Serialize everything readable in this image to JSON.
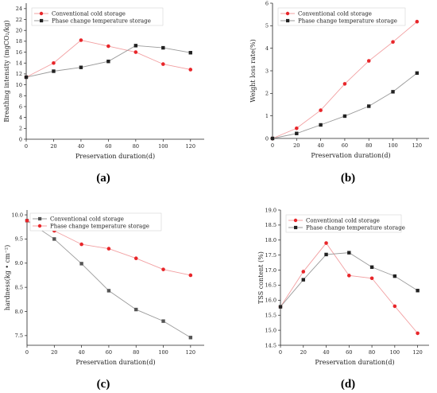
{
  "chart_data": [
    {
      "type": "line",
      "caption": "(a)",
      "xlabel": "Preservation duration(d)",
      "ylabel": "Breathing intensity (mgCO₂/kg)",
      "xlim": [
        0,
        130
      ],
      "ylim": [
        0,
        25
      ],
      "xticks": [
        0,
        20,
        40,
        60,
        80,
        100,
        120
      ],
      "yticks": [
        0,
        2,
        4,
        6,
        8,
        10,
        12,
        14,
        16,
        18,
        20,
        22,
        24
      ],
      "legend_position": "top-left",
      "series": [
        {
          "name": "Conventional cold storage",
          "color": "#e8262a",
          "marker": "circle",
          "x": [
            0,
            20,
            40,
            60,
            80,
            100,
            120
          ],
          "y": [
            11.4,
            14.0,
            18.2,
            17.1,
            16.0,
            13.8,
            12.8
          ]
        },
        {
          "name": "Phase change temperature storage",
          "color": "#222222",
          "marker": "square",
          "x": [
            0,
            20,
            40,
            60,
            80,
            100,
            120
          ],
          "y": [
            11.4,
            12.5,
            13.2,
            14.3,
            17.2,
            16.8,
            15.9
          ]
        }
      ]
    },
    {
      "type": "line",
      "caption": "(b)",
      "xlabel": "Preservation duration(d)",
      "ylabel": "Weight loss rate(%)",
      "xlim": [
        0,
        130
      ],
      "ylim": [
        0,
        6
      ],
      "xticks": [
        0,
        20,
        40,
        60,
        80,
        100,
        120
      ],
      "yticks": [
        0,
        1,
        2,
        3,
        4,
        5,
        6
      ],
      "legend_position": "top-left",
      "series": [
        {
          "name": "Conventional cold storage",
          "color": "#e8262a",
          "marker": "circle",
          "x": [
            0,
            20,
            40,
            60,
            80,
            100,
            120
          ],
          "y": [
            0,
            0.45,
            1.25,
            2.42,
            3.44,
            4.28,
            5.18
          ]
        },
        {
          "name": "Phase change temperature storage",
          "color": "#222222",
          "marker": "square",
          "x": [
            0,
            20,
            40,
            60,
            80,
            100,
            120
          ],
          "y": [
            0,
            0.22,
            0.6,
            0.99,
            1.43,
            2.07,
            2.9
          ]
        }
      ]
    },
    {
      "type": "line",
      "caption": "(c)",
      "xlabel": "Preservation duration(d)",
      "ylabel": "hardness(kg • cm⁻²)",
      "xlim": [
        0,
        130
      ],
      "ylim": [
        7.3,
        10.1
      ],
      "xticks": [
        0,
        20,
        40,
        60,
        80,
        100,
        120
      ],
      "yticks": [
        7.5,
        8.0,
        8.5,
        9.0,
        9.5,
        10.0
      ],
      "legend_position": "top-right",
      "series": [
        {
          "name": "Conventional cold storage",
          "color": "#555555",
          "marker": "square",
          "x": [
            0,
            20,
            40,
            60,
            80,
            100,
            120
          ],
          "y": [
            9.88,
            9.5,
            8.99,
            8.43,
            8.04,
            7.8,
            7.46
          ]
        },
        {
          "name": "Phase change temperature storage",
          "color": "#e8262a",
          "marker": "circle",
          "x": [
            0,
            20,
            40,
            60,
            80,
            100,
            120
          ],
          "y": [
            9.88,
            9.67,
            9.39,
            9.3,
            9.1,
            8.87,
            8.75
          ]
        }
      ]
    },
    {
      "type": "line",
      "caption": "(d)",
      "xlabel": "Preservation duration(d)",
      "ylabel": "TSS content (%)",
      "xlim": [
        0,
        130
      ],
      "ylim": [
        14.5,
        19.0
      ],
      "xticks": [
        0,
        20,
        40,
        60,
        80,
        100,
        120
      ],
      "yticks": [
        14.5,
        15.0,
        15.5,
        16.0,
        16.5,
        17.0,
        17.5,
        18.0,
        18.5,
        19.0
      ],
      "legend_position": "top-right",
      "series": [
        {
          "name": "Conventional cold storage",
          "color": "#e8262a",
          "marker": "circle",
          "x": [
            0,
            20,
            40,
            60,
            80,
            100,
            120
          ],
          "y": [
            15.78,
            16.95,
            17.9,
            16.82,
            16.73,
            15.8,
            14.9
          ]
        },
        {
          "name": "Phase change temperature storage",
          "color": "#222222",
          "marker": "square",
          "x": [
            0,
            20,
            40,
            60,
            80,
            100,
            120
          ],
          "y": [
            15.78,
            16.68,
            17.52,
            17.58,
            17.1,
            16.8,
            16.32
          ]
        }
      ]
    }
  ]
}
